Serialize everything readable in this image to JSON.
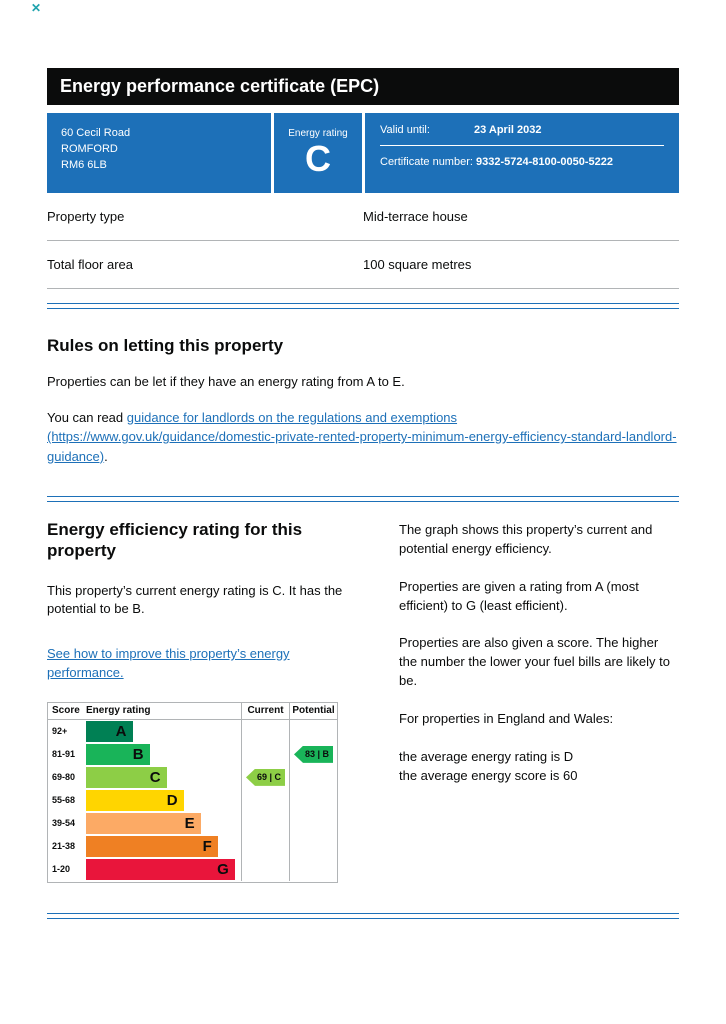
{
  "window": {
    "close_glyph": "✕"
  },
  "header": {
    "title": "Energy performance certificate (EPC)"
  },
  "summary_banner": {
    "address_lines": [
      "60 Cecil Road",
      "ROMFORD",
      "RM6 6LB"
    ],
    "energy_rating_label": "Energy rating",
    "energy_rating": "C",
    "valid_until_label": "Valid until:",
    "valid_until": "23 April 2032",
    "certificate_number_label": "Certificate number:",
    "certificate_number": "9332-5724-8100-0050-5222"
  },
  "property_details": {
    "rows": [
      {
        "label": "Property type",
        "value": "Mid-terrace house"
      },
      {
        "label": "Total floor area",
        "value": "100 square metres"
      }
    ]
  },
  "rules_section": {
    "heading": "Rules on letting this property",
    "paragraph1": "Properties can be let if they have an energy rating from A to E.",
    "paragraph2_prefix": "You can read ",
    "link_text": "guidance for landlords on the regulations and exemptions",
    "link_url_text": "(https://www.gov.uk/guidance/domestic-private-rented-property-minimum-energy-efficiency-standard-landlord-guidance)",
    "paragraph2_suffix": "."
  },
  "rating_section": {
    "heading": "Energy efficiency rating for this property",
    "paragraph1": "This property’s current energy rating is C. It has the potential to be B.",
    "improve_link_text": "See how to improve this property’s energy performance."
  },
  "explanation": {
    "paragraph1": "The graph shows this property’s current and potential energy efficiency.",
    "paragraph2": "Properties are given a rating from A (most efficient) to G (least efficient).",
    "paragraph3": "Properties are also given a score. The higher the number the lower your fuel bills are likely to be.",
    "paragraph4": "For properties in England and Wales:",
    "average_rating_line": "the average energy rating is D",
    "average_score_line": "the average energy score is 60"
  },
  "chart_data": {
    "type": "bar",
    "title": "Energy efficiency rating",
    "columns": {
      "score": "Score",
      "rating": "Energy rating",
      "current": "Current",
      "potential": "Potential"
    },
    "bands": [
      {
        "score": "92+",
        "letter": "A",
        "color": "#008054",
        "width_pct": 30
      },
      {
        "score": "81-91",
        "letter": "B",
        "color": "#19b459",
        "width_pct": 41
      },
      {
        "score": "69-80",
        "letter": "C",
        "color": "#8dce46",
        "width_pct": 52
      },
      {
        "score": "55-68",
        "letter": "D",
        "color": "#ffd500",
        "width_pct": 63
      },
      {
        "score": "39-54",
        "letter": "E",
        "color": "#fcaa65",
        "width_pct": 74
      },
      {
        "score": "21-38",
        "letter": "F",
        "color": "#ef8023",
        "width_pct": 85
      },
      {
        "score": "1-20",
        "letter": "G",
        "color": "#e9153b",
        "width_pct": 96
      }
    ],
    "current": {
      "score": 69,
      "band": "C",
      "label": "69 | C"
    },
    "potential": {
      "score": 83,
      "band": "B",
      "label": "83 | B"
    }
  }
}
